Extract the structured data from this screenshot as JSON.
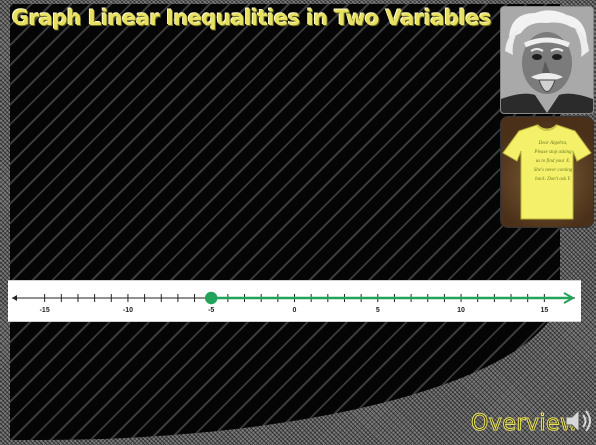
{
  "slide": {
    "title": "Graph Linear Inequalities in Two Variables",
    "nav_label": "Overview",
    "tshirt_text": [
      "Dear Algebra,",
      "Please stop asking",
      "us to find your X.",
      "She's never coming",
      "back. Don't ask Y."
    ]
  },
  "chart_data": {
    "type": "number-line",
    "xlim": [
      -16,
      16
    ],
    "major_ticks": [
      -15,
      -10,
      -5,
      0,
      5,
      10,
      15
    ],
    "tick_labels": [
      "-15",
      "-10",
      "-5",
      "0",
      "5",
      "10",
      "15"
    ],
    "minor_tick_step": 1,
    "solution": {
      "start": -5,
      "closed": true,
      "direction": "right"
    },
    "colors": {
      "solution": "#21a35a",
      "axis": "#222222"
    }
  },
  "colors": {
    "title": "#e8e060",
    "panel": "#050505"
  }
}
